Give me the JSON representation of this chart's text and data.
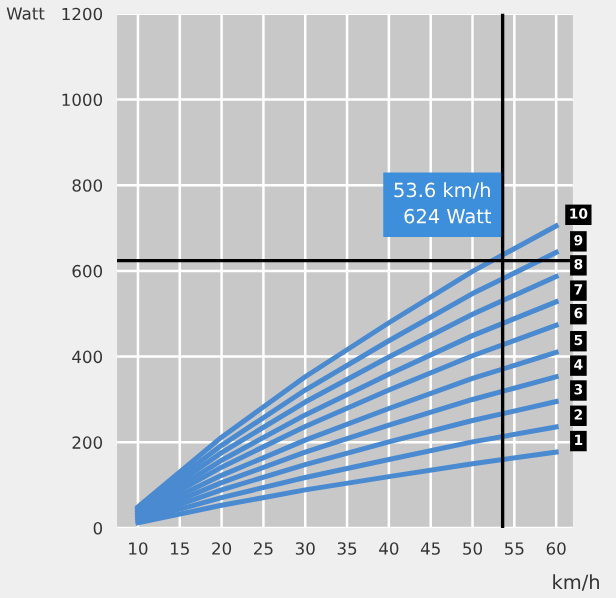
{
  "chart_data": {
    "type": "line",
    "ylabel": "Watt",
    "xlabel": "km/h",
    "color": "#4a8ad0",
    "x": [
      10,
      20,
      30,
      40,
      50,
      60
    ],
    "series": [
      {
        "name": "1",
        "values": [
          12,
          53,
          89,
          120,
          150,
          177
        ]
      },
      {
        "name": "2",
        "values": [
          17,
          71,
          118,
          160,
          201,
          236
        ]
      },
      {
        "name": "3",
        "values": [
          21,
          89,
          148,
          201,
          251,
          295
        ]
      },
      {
        "name": "4",
        "values": [
          25,
          106,
          177,
          240,
          300,
          353
        ]
      },
      {
        "name": "5",
        "values": [
          29,
          123,
          205,
          279,
          349,
          410
        ]
      },
      {
        "name": "6",
        "values": [
          33,
          142,
          237,
          322,
          402,
          473
        ]
      },
      {
        "name": "7",
        "values": [
          37,
          158,
          264,
          359,
          449,
          528
        ]
      },
      {
        "name": "8",
        "values": [
          41,
          176,
          294,
          399,
          499,
          587
        ]
      },
      {
        "name": "9",
        "values": [
          45,
          193,
          322,
          437,
          547,
          643
        ]
      },
      {
        "name": "10",
        "values": [
          49,
          212,
          353,
          479,
          599,
          705
        ]
      }
    ],
    "xlim": [
      7.5,
      62
    ],
    "ylim": [
      0,
      1200
    ],
    "xticks": [
      10,
      15,
      20,
      25,
      30,
      35,
      40,
      45,
      50,
      55,
      60
    ],
    "yticks": [
      0,
      200,
      400,
      600,
      800,
      1000,
      1200
    ],
    "ref_lines": [
      {
        "axis": "x",
        "value": 53.6,
        "color": "#000000"
      },
      {
        "axis": "y",
        "value": 624,
        "color": "#000000"
      }
    ],
    "annotations": [
      {
        "text": "53.6 km/h\n624 Watt",
        "x": 53.6,
        "y": 624
      }
    ],
    "grid": true,
    "legend": false,
    "marker": "none",
    "line_style": "solid"
  }
}
